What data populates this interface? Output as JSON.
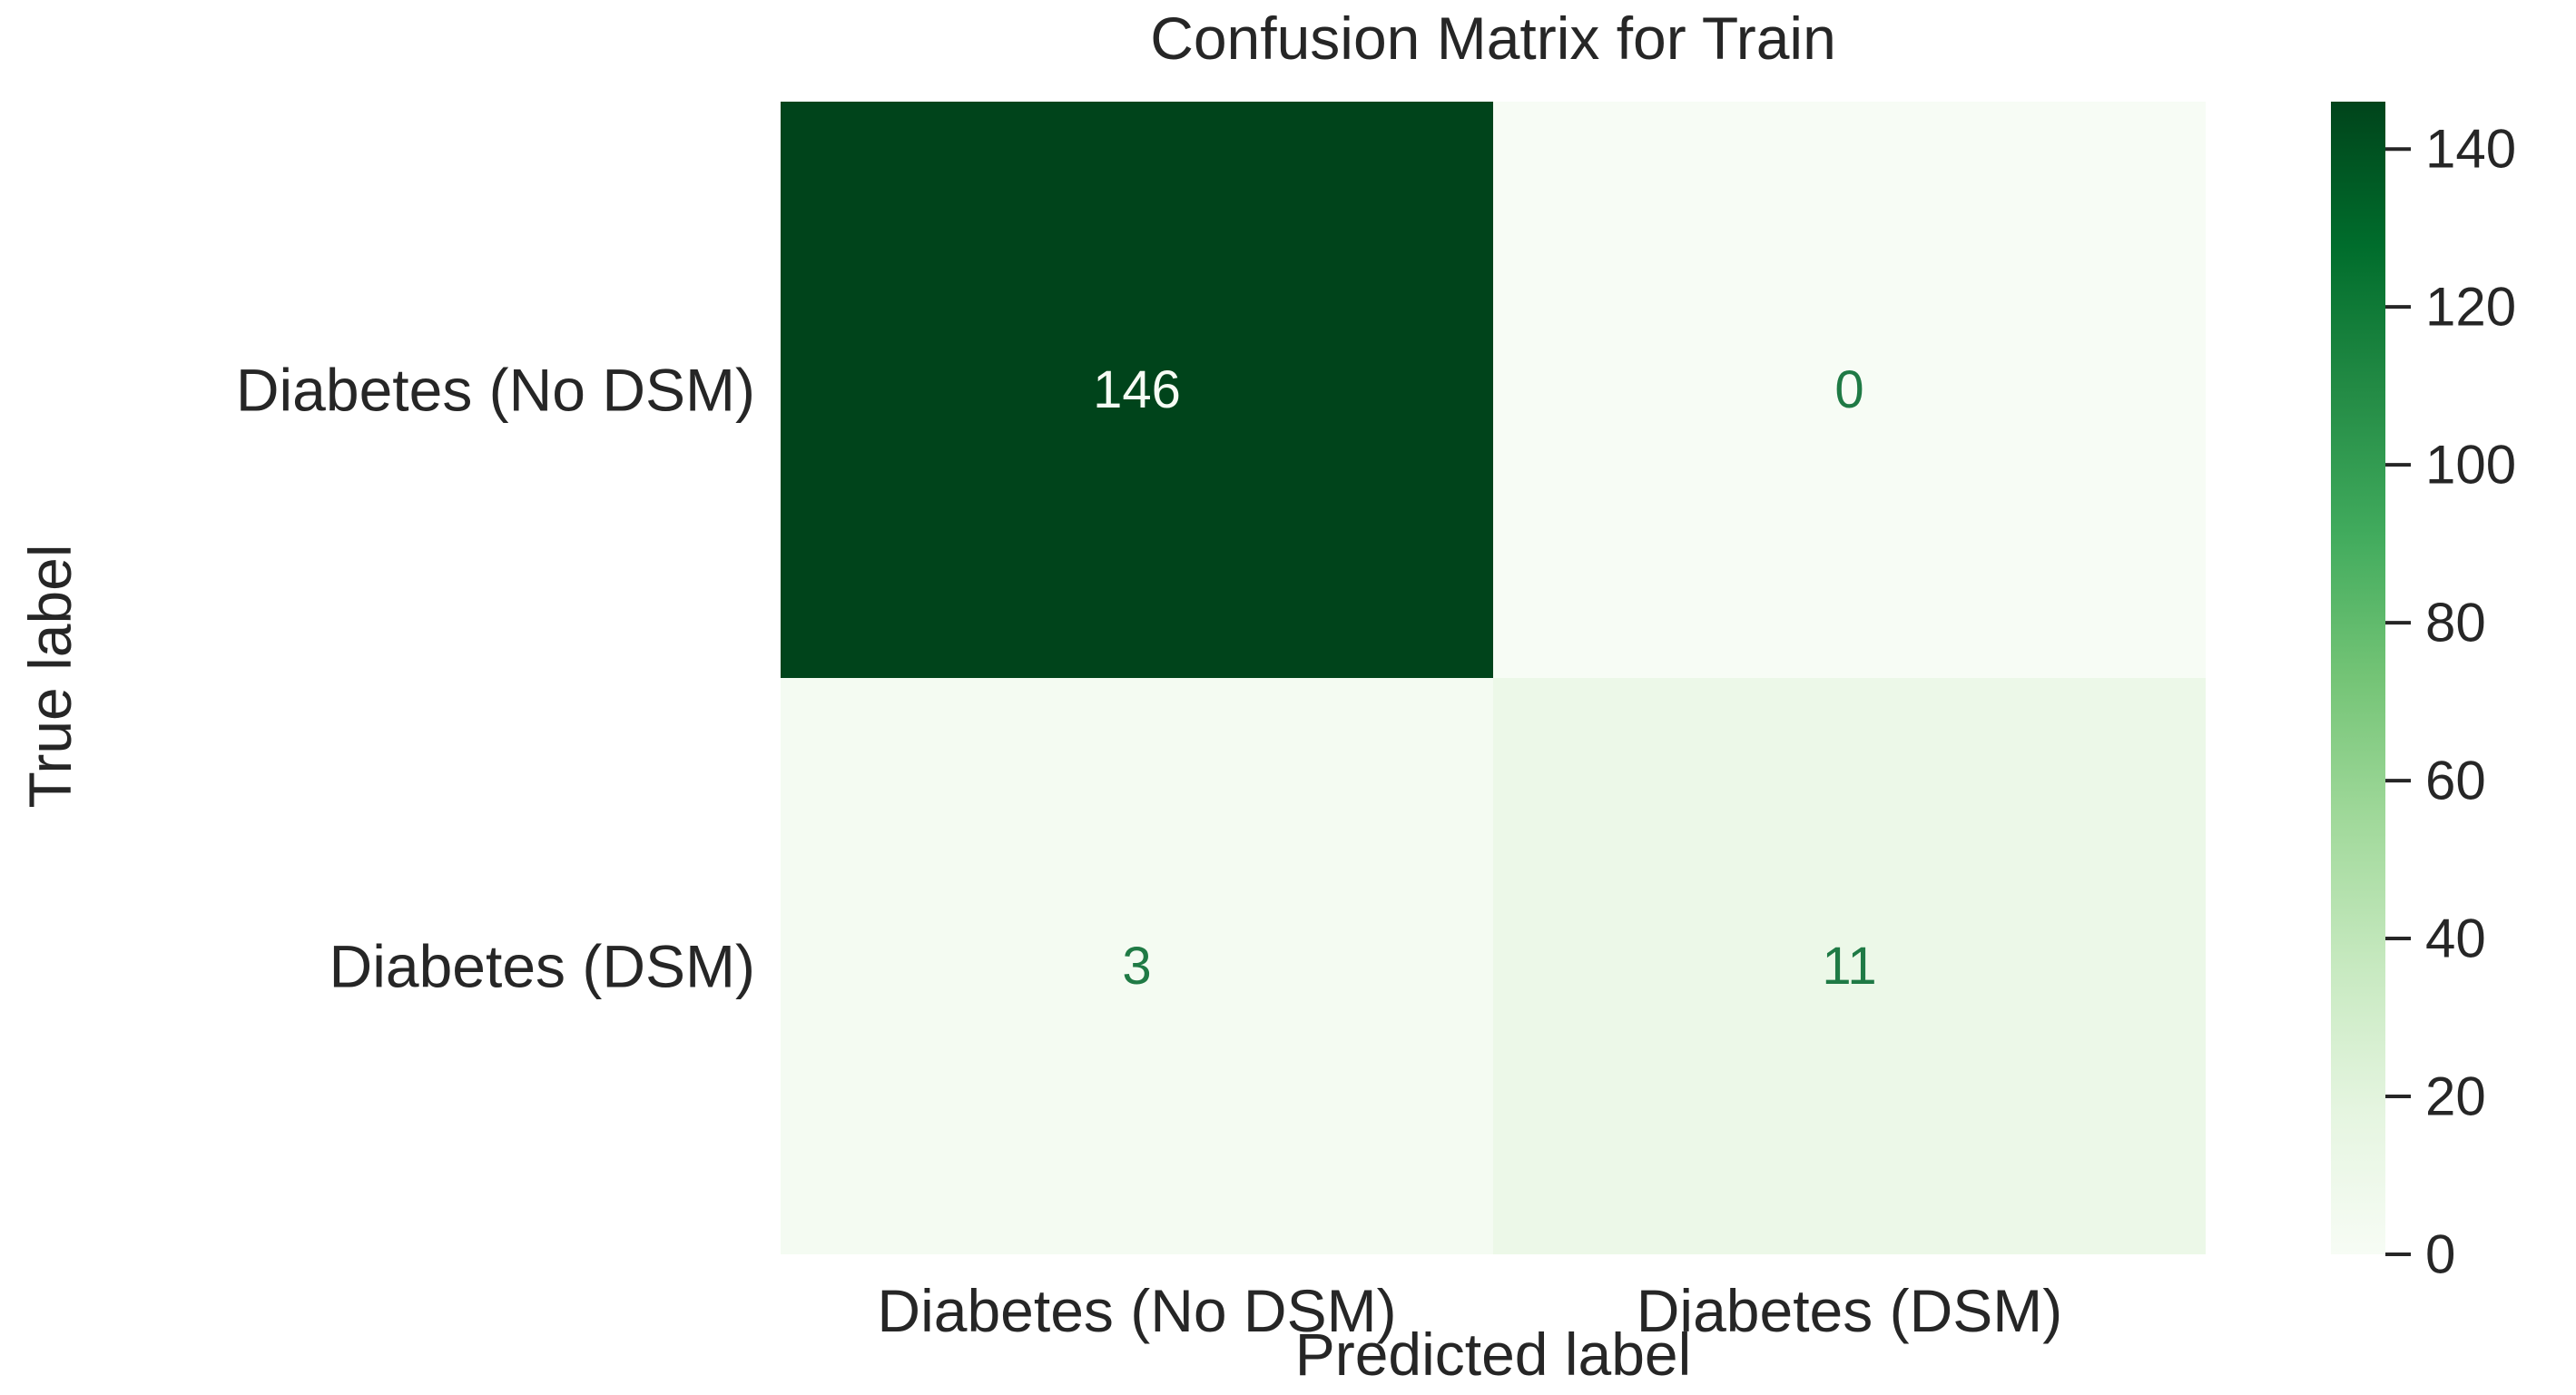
{
  "chart_data": {
    "type": "heatmap",
    "title": "Confusion Matrix for Train",
    "xlabel": "Predicted label",
    "ylabel": "True label",
    "x_categories": [
      "Diabetes (No DSM)",
      "Diabetes (DSM)"
    ],
    "y_categories": [
      "Diabetes (No DSM)",
      "Diabetes (DSM)"
    ],
    "values": [
      [
        146,
        0
      ],
      [
        3,
        11
      ]
    ],
    "colormap": "Greens",
    "colorbar": {
      "min": 0,
      "max": 146,
      "ticks": [
        0,
        20,
        40,
        60,
        80,
        100,
        120,
        140
      ]
    },
    "colors": {
      "low": "#f7fcf5",
      "mid": "#41ab5d",
      "high": "#00441b",
      "text_dark_bg": "#f7fcf5",
      "text_light_bg": "#1f7a45"
    },
    "grid": false
  }
}
